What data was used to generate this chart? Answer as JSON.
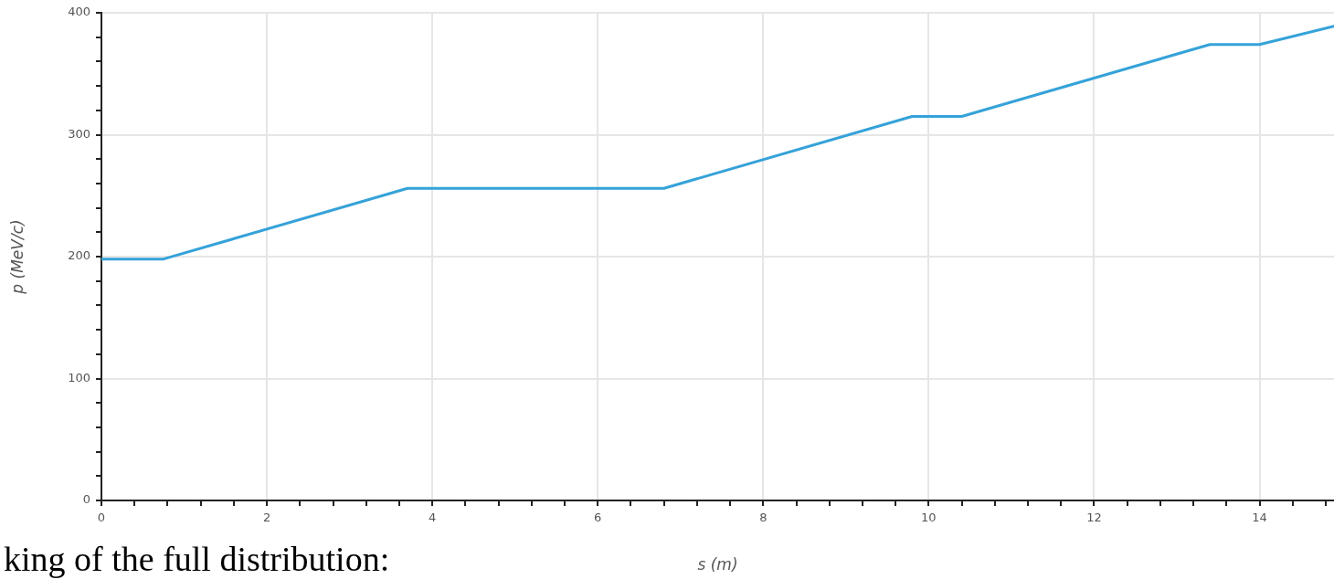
{
  "chart_data": {
    "type": "line",
    "xlabel": "s (m)",
    "ylabel": "p (MeV/c)",
    "annotations": [
      "king of the full distribution:"
    ],
    "x": [
      0,
      0.75,
      3.7,
      6.8,
      9.8,
      10.4,
      13.4,
      14.0,
      14.9
    ],
    "series": [
      {
        "color": "#35a2d9",
        "values": [
          198,
          198,
          256,
          256,
          315,
          315,
          374,
          374,
          389
        ]
      }
    ],
    "xlim": [
      0,
      14.9
    ],
    "xticks": [
      0,
      {
        "value": 0.4,
        "label": null
      },
      {
        "value": 0.8,
        "label": null
      },
      {
        "value": 1.2,
        "label": null
      },
      {
        "value": 1.6,
        "label": null
      },
      2,
      {
        "value": 2.4,
        "label": null
      },
      {
        "value": 2.8,
        "label": null
      },
      {
        "value": 3.2,
        "label": null
      },
      {
        "value": 3.6,
        "label": null
      },
      4,
      {
        "value": 4.4,
        "label": null
      },
      {
        "value": 4.8,
        "label": null
      },
      {
        "value": 5.2,
        "label": null
      },
      {
        "value": 5.6,
        "label": null
      },
      6,
      {
        "value": 6.4,
        "label": null
      },
      {
        "value": 6.8,
        "label": null
      },
      {
        "value": 7.2,
        "label": null
      },
      {
        "value": 7.6,
        "label": null
      },
      8,
      {
        "value": 8.4,
        "label": null
      },
      {
        "value": 8.8,
        "label": null
      },
      {
        "value": 9.2,
        "label": null
      },
      {
        "value": 9.6,
        "label": null
      },
      10,
      {
        "value": 10.4,
        "label": null
      },
      {
        "value": 10.8,
        "label": null
      },
      {
        "value": 11.2,
        "label": null
      },
      {
        "value": 11.6,
        "label": null
      },
      12,
      {
        "value": 12.4,
        "label": null
      },
      {
        "value": 12.8,
        "label": null
      },
      {
        "value": 13.2,
        "label": null
      },
      {
        "value": 13.6,
        "label": null
      },
      14,
      {
        "value": 14.4,
        "label": null
      },
      {
        "value": 14.8,
        "label": null
      }
    ],
    "ylim": [
      0,
      400
    ],
    "yticks": [
      0,
      {
        "value": 20,
        "label": null
      },
      {
        "value": 40,
        "label": null
      },
      {
        "value": 60,
        "label": null
      },
      {
        "value": 80,
        "label": null
      },
      100,
      {
        "value": 120,
        "label": null
      },
      {
        "value": 140,
        "label": null
      },
      {
        "value": 160,
        "label": null
      },
      {
        "value": 180,
        "label": null
      },
      200,
      {
        "value": 220,
        "label": null
      },
      {
        "value": 240,
        "label": null
      },
      {
        "value": 260,
        "label": null
      },
      {
        "value": 280,
        "label": null
      },
      300,
      {
        "value": 320,
        "label": null
      },
      {
        "value": 340,
        "label": null
      },
      {
        "value": 360,
        "label": null
      },
      {
        "value": 380,
        "label": null
      },
      400
    ],
    "grid": true,
    "legend": false,
    "marker": "none",
    "line_style": "solid"
  }
}
